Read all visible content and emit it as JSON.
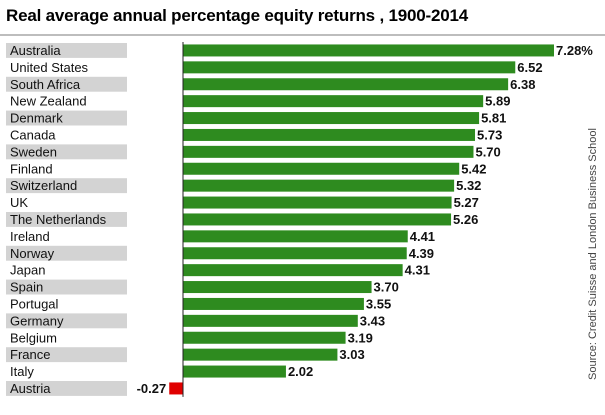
{
  "title": "Real average annual percentage equity returns , 1900-2014",
  "source": "Source: Credit Suisse and London Business School",
  "colors": {
    "positive_bar": "#2e8b1f",
    "negative_bar": "#e00000",
    "label_band": "#d3d3d3",
    "axis": "#222222"
  },
  "chart_data": {
    "type": "bar",
    "orientation": "horizontal",
    "title": "Real average annual percentage equity returns , 1900-2014",
    "xlabel": "",
    "ylabel": "",
    "categories": [
      "Australia",
      "United States",
      "South Africa",
      "New Zealand",
      "Denmark",
      "Canada",
      "Sweden",
      "Finland",
      "Switzerland",
      "UK",
      "The Netherlands",
      "Ireland",
      "Norway",
      "Japan",
      "Spain",
      "Portugal",
      "Germany",
      "Belgium",
      "France",
      "Italy",
      "Austria"
    ],
    "values": [
      7.28,
      6.52,
      6.38,
      5.89,
      5.81,
      5.73,
      5.7,
      5.42,
      5.32,
      5.27,
      5.26,
      4.41,
      4.39,
      4.31,
      3.7,
      3.55,
      3.43,
      3.19,
      3.03,
      2.02,
      -0.27
    ],
    "value_labels": [
      "7.28%",
      "6.52",
      "6.38",
      "5.89",
      "5.81",
      "5.73",
      "5.70",
      "5.42",
      "5.32",
      "5.27",
      "5.26",
      "4.41",
      "4.39",
      "4.31",
      "3.70",
      "3.55",
      "3.43",
      "3.19",
      "3.03",
      "2.02",
      "-0.27"
    ],
    "xlim": [
      -0.27,
      7.28
    ],
    "grid": false,
    "legend": "none"
  }
}
